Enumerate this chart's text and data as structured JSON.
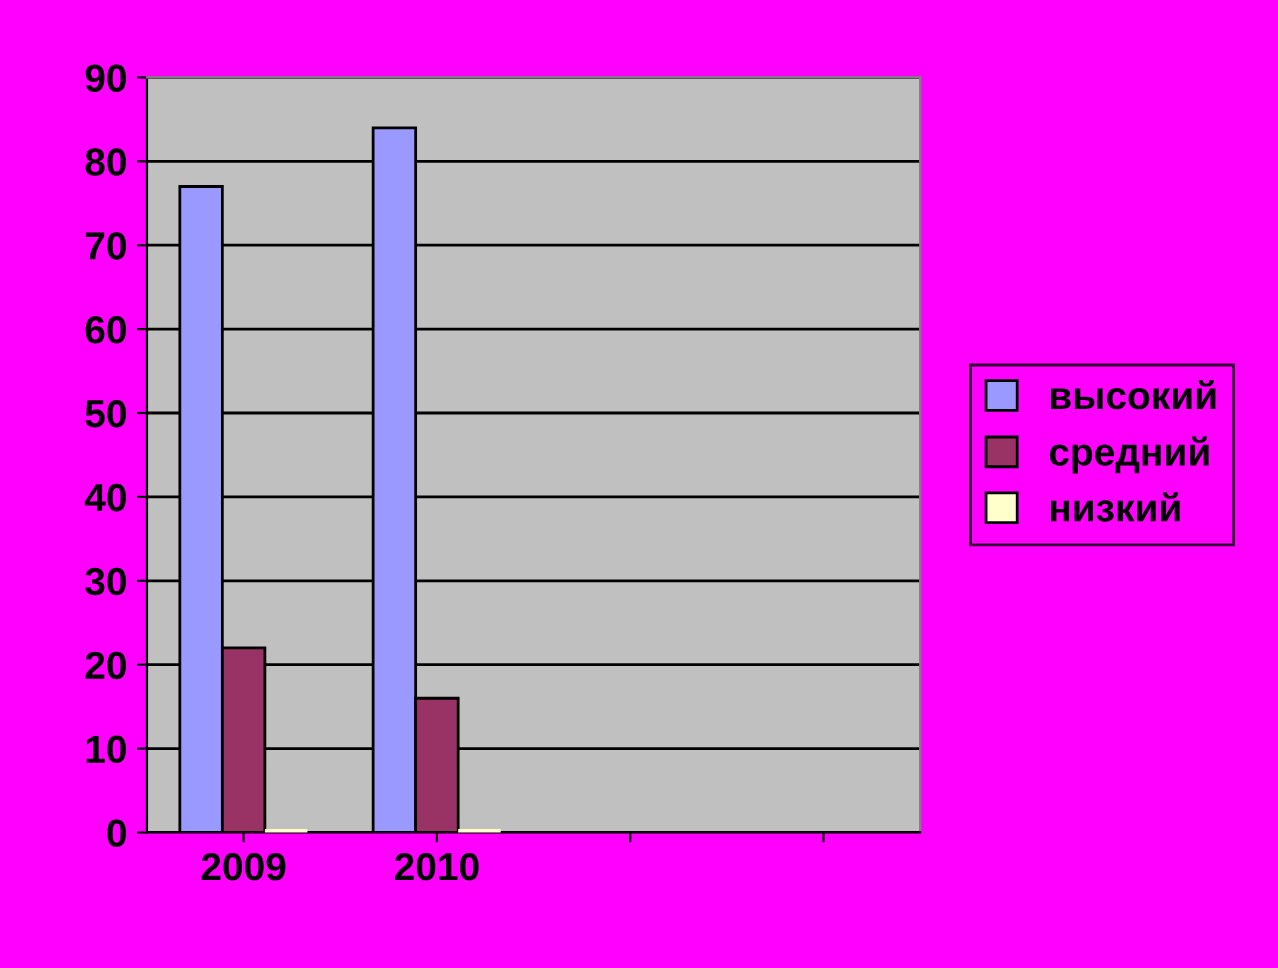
{
  "chart_data": {
    "type": "bar",
    "categories": [
      "2009",
      "2010",
      null,
      null
    ],
    "series": [
      {
        "name": "высокий",
        "color": "#9999ff",
        "values": [
          77,
          84,
          null,
          null
        ]
      },
      {
        "name": "средний",
        "color": "#993366",
        "values": [
          22,
          16,
          null,
          null
        ]
      },
      {
        "name": "низкий",
        "color": "#ffffcc",
        "values": [
          0,
          0,
          null,
          null
        ]
      }
    ],
    "ylim": [
      0,
      90
    ],
    "yticks": [
      0,
      10,
      20,
      30,
      40,
      50,
      60,
      70,
      80,
      90
    ],
    "grid": "y",
    "legend": "right"
  }
}
